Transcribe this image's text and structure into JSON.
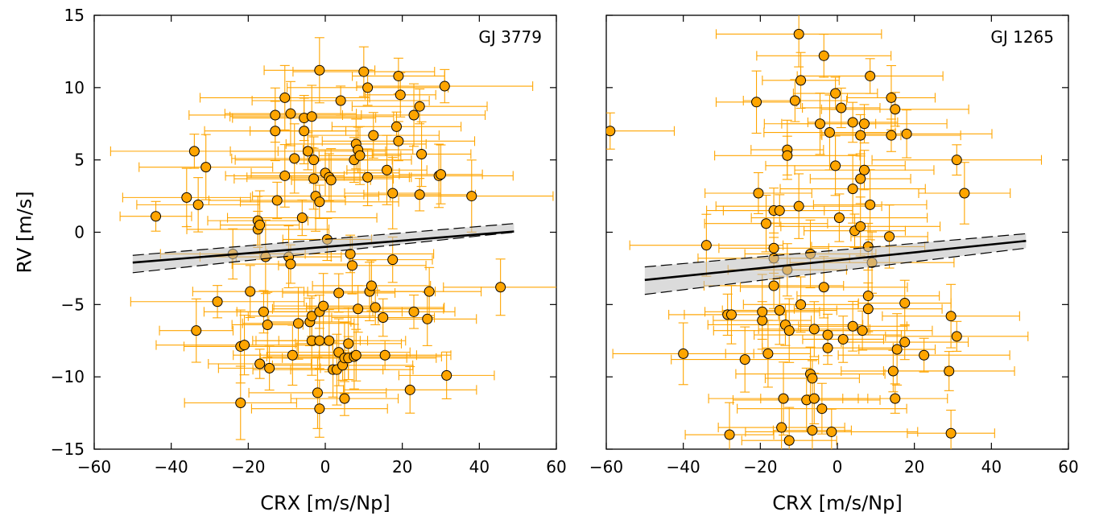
{
  "chart_data": [
    {
      "type": "scatter",
      "title": "GJ 3779",
      "xlabel": "CRX [m/s/Np]",
      "ylabel": "RV [m/s]",
      "xlim": [
        -60,
        60
      ],
      "ylim": [
        -15,
        15
      ],
      "xticks": [
        "−60",
        "−40",
        "−20",
        "0",
        "20",
        "40",
        "60"
      ],
      "yticks": [
        "15",
        "10",
        "5",
        "0",
        "−5",
        "−10",
        "−15"
      ],
      "grid": false,
      "point_color": "#ffa500",
      "errorbar_color": "#ffa500",
      "fit": {
        "x": [
          -50,
          49
        ],
        "y": [
          -2.1,
          0.05
        ],
        "band_low": [
          -2.8,
          0.0
        ],
        "band_high": [
          -1.6,
          0.6
        ]
      },
      "points": [
        {
          "x": -44,
          "y": 1.1
        },
        {
          "x": -36,
          "y": 2.4
        },
        {
          "x": -34,
          "y": 5.6
        },
        {
          "x": -33,
          "y": 1.9
        },
        {
          "x": -31,
          "y": 4.5
        },
        {
          "x": -33.5,
          "y": -6.8
        },
        {
          "x": -28,
          "y": -4.8
        },
        {
          "x": -24,
          "y": -1.5
        },
        {
          "x": -22,
          "y": -11.8
        },
        {
          "x": -22,
          "y": -7.9
        },
        {
          "x": -21,
          "y": -7.8
        },
        {
          "x": -19.5,
          "y": -4.1
        },
        {
          "x": -17.5,
          "y": 0.8
        },
        {
          "x": -17.5,
          "y": 0.2
        },
        {
          "x": -17,
          "y": 0.5
        },
        {
          "x": -17,
          "y": -9.1
        },
        {
          "x": -16,
          "y": -5.5
        },
        {
          "x": -15.5,
          "y": -1.7
        },
        {
          "x": -15,
          "y": -6.4
        },
        {
          "x": -14.5,
          "y": -9.4
        },
        {
          "x": -13,
          "y": 8.1
        },
        {
          "x": -13,
          "y": 7.0
        },
        {
          "x": -12.5,
          "y": 2.2
        },
        {
          "x": -10.5,
          "y": 9.3
        },
        {
          "x": -10.5,
          "y": 3.9
        },
        {
          "x": -9.5,
          "y": -1.7
        },
        {
          "x": -9,
          "y": 8.2
        },
        {
          "x": -9,
          "y": -2.2
        },
        {
          "x": -8.5,
          "y": -8.5
        },
        {
          "x": -8,
          "y": 5.1
        },
        {
          "x": -7,
          "y": -6.3
        },
        {
          "x": -6,
          "y": 1.0
        },
        {
          "x": -5.5,
          "y": 7.9
        },
        {
          "x": -5.5,
          "y": 7.0
        },
        {
          "x": -4.5,
          "y": 5.6
        },
        {
          "x": -4,
          "y": -6.2
        },
        {
          "x": -3.5,
          "y": 8.0
        },
        {
          "x": -3.5,
          "y": -5.8
        },
        {
          "x": -3.5,
          "y": -7.5
        },
        {
          "x": -3,
          "y": 5.0
        },
        {
          "x": -3,
          "y": 3.7
        },
        {
          "x": -2.5,
          "y": 2.5
        },
        {
          "x": -2,
          "y": -11.1
        },
        {
          "x": -1.5,
          "y": 11.2
        },
        {
          "x": -1.5,
          "y": 2.1
        },
        {
          "x": -1.5,
          "y": -12.2
        },
        {
          "x": -1.5,
          "y": -7.5
        },
        {
          "x": -1.5,
          "y": -5.5
        },
        {
          "x": -0.5,
          "y": -5.1
        },
        {
          "x": 0,
          "y": 4.1
        },
        {
          "x": 0.5,
          "y": -0.5
        },
        {
          "x": 1,
          "y": 3.8
        },
        {
          "x": 1,
          "y": -7.5
        },
        {
          "x": 1.5,
          "y": 3.6
        },
        {
          "x": 2,
          "y": -9.5
        },
        {
          "x": 3,
          "y": -9.5
        },
        {
          "x": 3.5,
          "y": -4.2
        },
        {
          "x": 3.5,
          "y": -8.3
        },
        {
          "x": 4,
          "y": 9.1
        },
        {
          "x": 4.5,
          "y": -9.2
        },
        {
          "x": 5,
          "y": -11.5
        },
        {
          "x": 5,
          "y": -8.7
        },
        {
          "x": 6,
          "y": -8.7
        },
        {
          "x": 6,
          "y": -7.7
        },
        {
          "x": 6.5,
          "y": -1.5
        },
        {
          "x": 7,
          "y": -2.3
        },
        {
          "x": 7.5,
          "y": 5.0
        },
        {
          "x": 7.5,
          "y": -8.6
        },
        {
          "x": 8,
          "y": 6.1
        },
        {
          "x": 8,
          "y": -8.5
        },
        {
          "x": 8.5,
          "y": 5.7
        },
        {
          "x": 8.5,
          "y": -5.3
        },
        {
          "x": 9,
          "y": 5.3
        },
        {
          "x": 10,
          "y": 11.1
        },
        {
          "x": 11,
          "y": 10.0
        },
        {
          "x": 11,
          "y": 3.8
        },
        {
          "x": 11.5,
          "y": -4.1
        },
        {
          "x": 12,
          "y": -3.7
        },
        {
          "x": 12.5,
          "y": 6.7
        },
        {
          "x": 13,
          "y": -5.2
        },
        {
          "x": 15,
          "y": -5.9
        },
        {
          "x": 15.5,
          "y": -8.5
        },
        {
          "x": 16,
          "y": 4.3
        },
        {
          "x": 17.5,
          "y": 2.7
        },
        {
          "x": 17.5,
          "y": -1.9
        },
        {
          "x": 18.5,
          "y": 7.3
        },
        {
          "x": 19,
          "y": 10.8
        },
        {
          "x": 19,
          "y": 6.3
        },
        {
          "x": 19.5,
          "y": 9.5
        },
        {
          "x": 22,
          "y": -10.9
        },
        {
          "x": 23,
          "y": 8.1
        },
        {
          "x": 23,
          "y": -5.5
        },
        {
          "x": 24.5,
          "y": 8.7
        },
        {
          "x": 24.5,
          "y": 2.6
        },
        {
          "x": 25,
          "y": 5.4
        },
        {
          "x": 26.5,
          "y": -6.0
        },
        {
          "x": 27,
          "y": -4.1
        },
        {
          "x": 29.5,
          "y": 3.9
        },
        {
          "x": 30,
          "y": 4.0
        },
        {
          "x": 31,
          "y": 10.1
        },
        {
          "x": 31.5,
          "y": -9.9
        },
        {
          "x": 38,
          "y": 2.5
        },
        {
          "x": 45.5,
          "y": -3.8
        }
      ]
    },
    {
      "type": "scatter",
      "title": "GJ 1265",
      "xlabel": "CRX [m/s/Np]",
      "ylabel": "",
      "xlim": [
        -60,
        60
      ],
      "ylim": [
        -15,
        15
      ],
      "xticks": [
        "−60",
        "−40",
        "−20",
        "0",
        "20",
        "40",
        "60"
      ],
      "yticks": [],
      "grid": false,
      "point_color": "#ffa500",
      "errorbar_color": "#ffa500",
      "fit": {
        "x": [
          -50,
          49
        ],
        "y": [
          -3.3,
          -0.6
        ],
        "band_low": [
          -4.3,
          -1.1
        ],
        "band_high": [
          -2.4,
          -0.1
        ]
      },
      "points": [
        {
          "x": -59,
          "y": 7.0
        },
        {
          "x": -40,
          "y": -8.4
        },
        {
          "x": -34,
          "y": -0.9
        },
        {
          "x": -28.5,
          "y": -5.7
        },
        {
          "x": -28,
          "y": -14.0
        },
        {
          "x": -27.5,
          "y": -5.7
        },
        {
          "x": -24,
          "y": -8.8
        },
        {
          "x": -21,
          "y": 9.0
        },
        {
          "x": -20.5,
          "y": 2.7
        },
        {
          "x": -19.5,
          "y": -6.1
        },
        {
          "x": -19.5,
          "y": -5.5
        },
        {
          "x": -18.5,
          "y": 0.6
        },
        {
          "x": -18,
          "y": -8.4
        },
        {
          "x": -16.5,
          "y": 1.5
        },
        {
          "x": -16.5,
          "y": -1.1
        },
        {
          "x": -16.5,
          "y": -1.8
        },
        {
          "x": -16.5,
          "y": -3.7
        },
        {
          "x": -15,
          "y": 1.5
        },
        {
          "x": -15,
          "y": -5.4
        },
        {
          "x": -14.5,
          "y": -13.5
        },
        {
          "x": -14,
          "y": -11.5
        },
        {
          "x": -13.5,
          "y": -6.4
        },
        {
          "x": -13,
          "y": 5.7
        },
        {
          "x": -13,
          "y": 5.3
        },
        {
          "x": -13,
          "y": -2.6
        },
        {
          "x": -12.5,
          "y": -6.8
        },
        {
          "x": -12.5,
          "y": -14.4
        },
        {
          "x": -11,
          "y": 9.1
        },
        {
          "x": -10,
          "y": 13.7
        },
        {
          "x": -10,
          "y": 1.8
        },
        {
          "x": -9.5,
          "y": 10.5
        },
        {
          "x": -9.5,
          "y": -5.0
        },
        {
          "x": -8,
          "y": -11.6
        },
        {
          "x": -7,
          "y": -9.8
        },
        {
          "x": -7,
          "y": -1.5
        },
        {
          "x": -6.5,
          "y": -13.7
        },
        {
          "x": -6.5,
          "y": -10.1
        },
        {
          "x": -6,
          "y": -11.5
        },
        {
          "x": -6,
          "y": -6.7
        },
        {
          "x": -4.5,
          "y": 7.5
        },
        {
          "x": -4,
          "y": -12.2
        },
        {
          "x": -3.5,
          "y": 12.2
        },
        {
          "x": -3.5,
          "y": -3.8
        },
        {
          "x": -2.5,
          "y": -8.0
        },
        {
          "x": -2.5,
          "y": -7.1
        },
        {
          "x": -2,
          "y": 6.9
        },
        {
          "x": -1.5,
          "y": -13.8
        },
        {
          "x": -0.5,
          "y": 9.6
        },
        {
          "x": -0.5,
          "y": 4.6
        },
        {
          "x": 0.5,
          "y": 1.0
        },
        {
          "x": 1,
          "y": 8.6
        },
        {
          "x": 1.5,
          "y": -7.4
        },
        {
          "x": 4,
          "y": 7.6
        },
        {
          "x": 4,
          "y": 3.0
        },
        {
          "x": 4,
          "y": -6.5
        },
        {
          "x": 4.5,
          "y": 0.1
        },
        {
          "x": 6,
          "y": 6.7
        },
        {
          "x": 6,
          "y": 3.7
        },
        {
          "x": 6,
          "y": 0.4
        },
        {
          "x": 6.5,
          "y": -6.8
        },
        {
          "x": 7,
          "y": 7.5
        },
        {
          "x": 7,
          "y": 4.3
        },
        {
          "x": 8,
          "y": -1.0
        },
        {
          "x": 8,
          "y": -4.4
        },
        {
          "x": 8,
          "y": -5.3
        },
        {
          "x": 8.5,
          "y": 10.8
        },
        {
          "x": 8.5,
          "y": 1.9
        },
        {
          "x": 9,
          "y": -2.1
        },
        {
          "x": 13.5,
          "y": -0.3
        },
        {
          "x": 14,
          "y": 9.3
        },
        {
          "x": 14,
          "y": 6.7
        },
        {
          "x": 14.5,
          "y": -9.6
        },
        {
          "x": 15,
          "y": 8.5
        },
        {
          "x": 15,
          "y": -11.5
        },
        {
          "x": 15.5,
          "y": -8.1
        },
        {
          "x": 17.5,
          "y": -4.9
        },
        {
          "x": 17.5,
          "y": -7.6
        },
        {
          "x": 18,
          "y": 6.8
        },
        {
          "x": 22.5,
          "y": -8.5
        },
        {
          "x": 29,
          "y": -9.6
        },
        {
          "x": 29.5,
          "y": -5.8
        },
        {
          "x": 29.5,
          "y": -13.9
        },
        {
          "x": 31,
          "y": -7.2
        },
        {
          "x": 31,
          "y": 5.0
        },
        {
          "x": 33,
          "y": 2.7
        }
      ]
    }
  ]
}
